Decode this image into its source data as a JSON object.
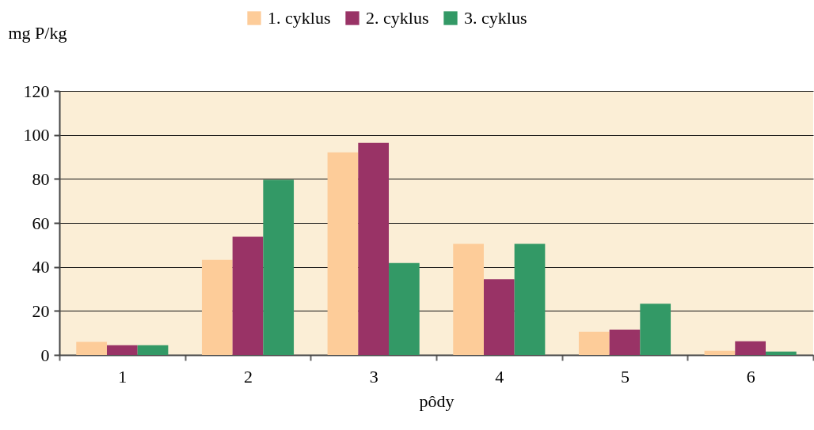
{
  "chart_data": {
    "type": "bar",
    "xlabel": "pôdy",
    "ylabel": "mg P/kg",
    "categories": [
      "1",
      "2",
      "3",
      "4",
      "5",
      "6"
    ],
    "series": [
      {
        "name": "1. cyklus",
        "color": "#fdcc99",
        "values": [
          5.9,
          43.2,
          92.1,
          50.5,
          10.5,
          1.9
        ]
      },
      {
        "name": "2. cyklus",
        "color": "#993366",
        "values": [
          4.4,
          53.7,
          96.4,
          34.4,
          11.5,
          6.2
        ]
      },
      {
        "name": "3. cyklus",
        "color": "#339966",
        "values": [
          4.4,
          79.6,
          41.8,
          50.5,
          23.3,
          1.5
        ]
      }
    ],
    "ylim": [
      0,
      120
    ],
    "yticks": [
      0,
      20,
      40,
      60,
      80,
      100,
      120
    ],
    "grid": "y",
    "legend": "top"
  }
}
